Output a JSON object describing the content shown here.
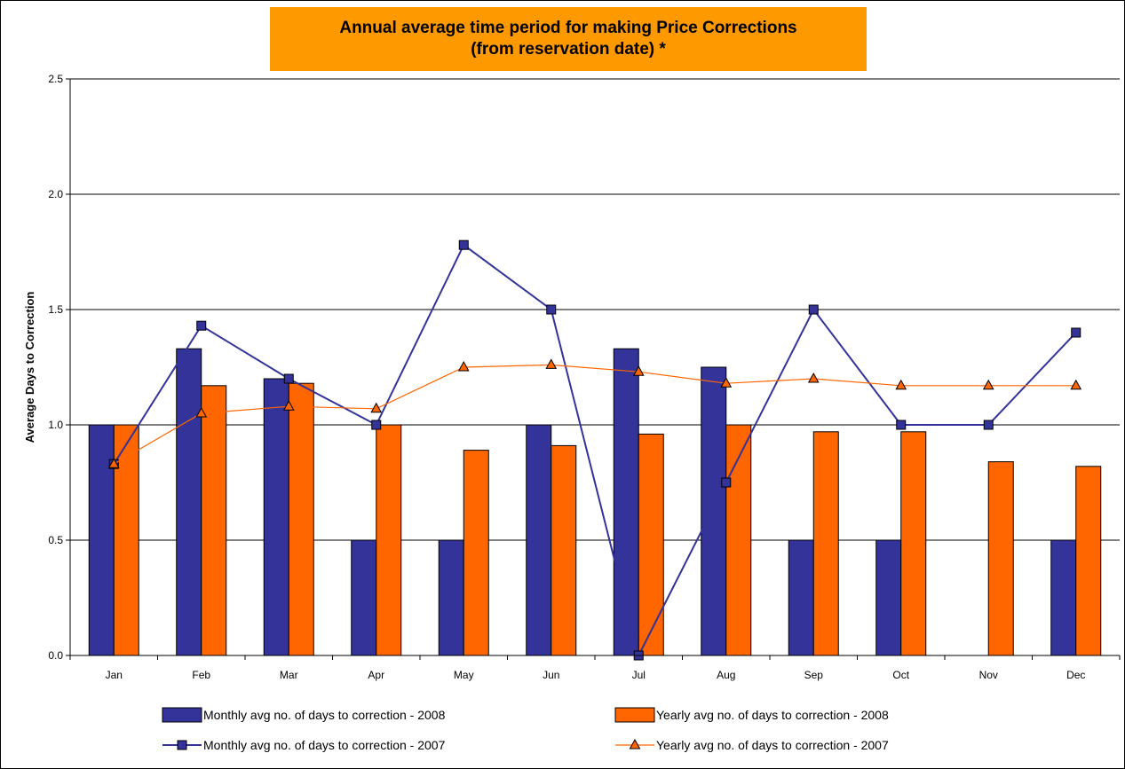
{
  "chart_data": {
    "type": "bar",
    "title": "Annual average time period for making Price Corrections",
    "subtitle": "(from reservation date) *",
    "xlabel": "",
    "ylabel": "Average Days to Correction",
    "ylim": [
      0,
      2.5
    ],
    "yticks": [
      "0.0",
      "0.5",
      "1.0",
      "1.5",
      "2.0",
      "2.5"
    ],
    "categories": [
      "Jan",
      "Feb",
      "Mar",
      "Apr",
      "May",
      "Jun",
      "Jul",
      "Aug",
      "Sep",
      "Oct",
      "Nov",
      "Dec"
    ],
    "grid": true,
    "legend_position": "bottom",
    "series": [
      {
        "name": "Monthly avg no. of days to correction - 2008",
        "type": "bar",
        "color": "#333399",
        "values": [
          1.0,
          1.33,
          1.2,
          0.5,
          0.5,
          1.0,
          1.33,
          1.25,
          0.5,
          0.5,
          null,
          0.5
        ]
      },
      {
        "name": "Yearly avg no. of days to correction - 2008",
        "type": "bar",
        "color": "#ff6600",
        "values": [
          1.0,
          1.17,
          1.18,
          1.0,
          0.89,
          0.91,
          0.96,
          1.0,
          0.97,
          0.97,
          0.84,
          0.82
        ]
      },
      {
        "name": "Monthly avg no. of days to correction - 2007",
        "type": "line",
        "marker": "square",
        "color": "#333399",
        "values": [
          0.83,
          1.43,
          1.2,
          1.0,
          1.78,
          1.5,
          0.0,
          0.75,
          1.5,
          1.0,
          1.0,
          1.4
        ]
      },
      {
        "name": "Yearly avg no. of days to correction - 2007",
        "type": "line",
        "marker": "triangle",
        "color": "#ff6600",
        "values": [
          0.83,
          1.05,
          1.08,
          1.07,
          1.25,
          1.26,
          1.23,
          1.18,
          1.2,
          1.17,
          1.17,
          1.17
        ]
      }
    ]
  }
}
